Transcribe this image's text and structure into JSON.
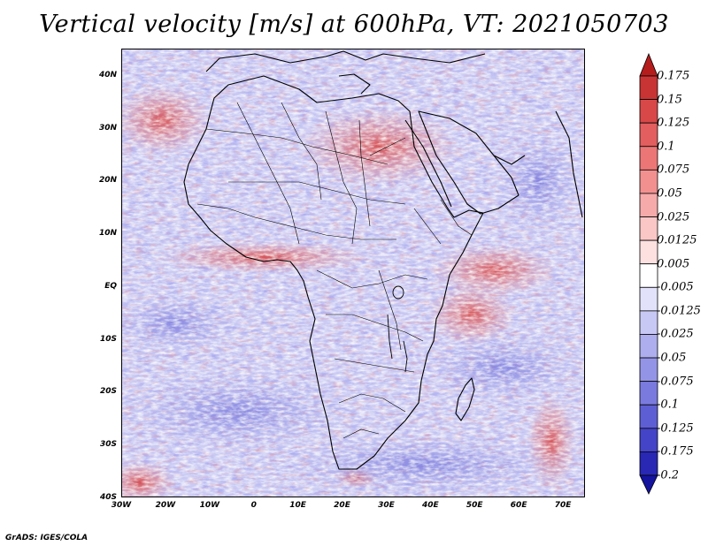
{
  "title": "Vertical velocity [m/s] at 600hPa, VT: 2021050703",
  "footer": "GrADS: IGES/COLA",
  "map": {
    "lat_ticks": [
      "40N",
      "30N",
      "20N",
      "10N",
      "EQ",
      "10S",
      "20S",
      "30S",
      "40S"
    ],
    "lat_values": [
      40,
      30,
      20,
      10,
      0,
      -10,
      -20,
      -30,
      -40
    ],
    "lon_ticks": [
      "30W",
      "20W",
      "10W",
      "0",
      "10E",
      "20E",
      "30E",
      "40E",
      "50E",
      "60E",
      "70E"
    ],
    "lon_values": [
      -30,
      -20,
      -10,
      0,
      10,
      20,
      30,
      40,
      50,
      60,
      70
    ],
    "lat_range": [
      -40,
      45
    ],
    "lon_range": [
      -30,
      75
    ]
  },
  "colorbar": {
    "labels": [
      "0.175",
      "0.15",
      "0.125",
      "0.1",
      "0.075",
      "0.05",
      "0.025",
      "0.0125",
      "0.005",
      "-0.005",
      "-0.0125",
      "-0.025",
      "-0.05",
      "-0.075",
      "-0.1",
      "-0.125",
      "-0.175",
      "-0.2"
    ],
    "colors": [
      "#b51d1d",
      "#c83434",
      "#d84848",
      "#e35e5e",
      "#ec7676",
      "#f29090",
      "#f6aaaa",
      "#fac6c6",
      "#fde0e0",
      "#ffffff",
      "#e2e2fb",
      "#c8c8f5",
      "#aeaeee",
      "#9494e6",
      "#7a7ade",
      "#5e5ed4",
      "#4444c8",
      "#2828b4",
      "#14149e"
    ]
  }
}
